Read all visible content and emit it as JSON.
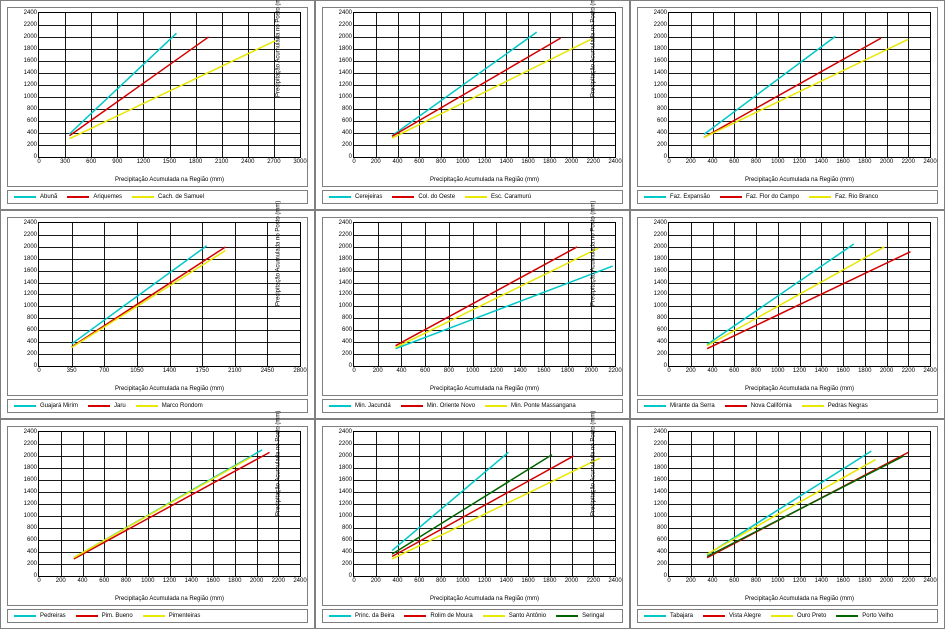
{
  "global": {
    "ylabel": "Precipitação Acumulada no Posto (mm)",
    "xlabel": "Precipitação Acumulada na Região (mm)",
    "label_fontsize": 6,
    "tick_fontsize": 6,
    "ylim": [
      0,
      2400
    ],
    "ytick_step": 200,
    "panel_border": "#7f7f7f",
    "grid_color": "#000000",
    "bg": "#ffffff",
    "colors": {
      "cyan": "#00c8c8",
      "red": "#d40000",
      "yellow": "#e8e800",
      "green": "#006400"
    },
    "line_width": 1.5
  },
  "panels": [
    {
      "xlim": [
        0,
        3000
      ],
      "xtick_step": 300,
      "series": [
        {
          "name": "Abunã",
          "color": "cyan",
          "pts": [
            [
              350,
              380
            ],
            [
              1580,
              2060
            ]
          ]
        },
        {
          "name": "Ariquemes",
          "color": "red",
          "pts": [
            [
              350,
              350
            ],
            [
              1950,
              2000
            ]
          ]
        },
        {
          "name": "Cach. de Samuel",
          "color": "yellow",
          "pts": [
            [
              350,
              300
            ],
            [
              2720,
              1940
            ]
          ]
        }
      ]
    },
    {
      "xlim": [
        0,
        2400
      ],
      "xtick_step": 200,
      "series": [
        {
          "name": "Cerejeiras",
          "color": "cyan",
          "pts": [
            [
              350,
              350
            ],
            [
              1680,
              2080
            ]
          ]
        },
        {
          "name": "Col. do Oeste",
          "color": "red",
          "pts": [
            [
              350,
              340
            ],
            [
              1900,
              1980
            ]
          ]
        },
        {
          "name": "Esc. Caramurú",
          "color": "yellow",
          "pts": [
            [
              350,
              310
            ],
            [
              2180,
              1960
            ]
          ]
        }
      ]
    },
    {
      "xlim": [
        0,
        2400
      ],
      "xtick_step": 200,
      "series": [
        {
          "name": "Faz. Expansão",
          "color": "cyan",
          "pts": [
            [
              320,
              370
            ],
            [
              1530,
              2010
            ]
          ]
        },
        {
          "name": "Faz. Flor do Campo",
          "color": "red",
          "pts": [
            [
              320,
              320
            ],
            [
              1950,
              1980
            ]
          ]
        },
        {
          "name": "Faz. Rio Branco",
          "color": "yellow",
          "pts": [
            [
              320,
              320
            ],
            [
              2200,
              1960
            ]
          ]
        }
      ]
    },
    {
      "xlim": [
        0,
        2800
      ],
      "xtick_step": 350,
      "series": [
        {
          "name": "Guajará Mirím",
          "color": "cyan",
          "pts": [
            [
              350,
              380
            ],
            [
              1800,
              2020
            ]
          ]
        },
        {
          "name": "Jaru",
          "color": "red",
          "pts": [
            [
              350,
              330
            ],
            [
              2000,
              2000
            ]
          ]
        },
        {
          "name": "Marco Rondom",
          "color": "yellow",
          "pts": [
            [
              350,
              320
            ],
            [
              2000,
              1940
            ]
          ]
        }
      ]
    },
    {
      "xlim": [
        0,
        2200
      ],
      "xtick_step": 200,
      "series": [
        {
          "name": "Min. Jacundá",
          "color": "cyan",
          "pts": [
            [
              350,
              300
            ],
            [
              2180,
              1680
            ]
          ]
        },
        {
          "name": "Min. Oriente Novo",
          "color": "red",
          "pts": [
            [
              350,
              350
            ],
            [
              1880,
              2000
            ]
          ]
        },
        {
          "name": "Min. Ponte Massangana",
          "color": "yellow",
          "pts": [
            [
              350,
              320
            ],
            [
              2060,
              1980
            ]
          ]
        }
      ]
    },
    {
      "xlim": [
        0,
        2400
      ],
      "xtick_step": 200,
      "series": [
        {
          "name": "Mirante da Serra",
          "color": "cyan",
          "pts": [
            [
              350,
              370
            ],
            [
              1700,
              2050
            ]
          ]
        },
        {
          "name": "Nova Califórnia",
          "color": "red",
          "pts": [
            [
              350,
              300
            ],
            [
              2220,
              1920
            ]
          ]
        },
        {
          "name": "Pedras Negras",
          "color": "yellow",
          "pts": [
            [
              350,
              350
            ],
            [
              1980,
              2000
            ]
          ]
        }
      ]
    },
    {
      "xlim": [
        0,
        2400
      ],
      "xtick_step": 200,
      "series": [
        {
          "name": "Pedreiras",
          "color": "cyan",
          "pts": [
            [
              320,
              300
            ],
            [
              2050,
              2100
            ]
          ]
        },
        {
          "name": "Pim. Bueno",
          "color": "red",
          "pts": [
            [
              320,
              280
            ],
            [
              2120,
              2060
            ]
          ]
        },
        {
          "name": "Pimenteiras",
          "color": "yellow",
          "pts": [
            [
              320,
              300
            ],
            [
              1950,
              1980
            ]
          ]
        }
      ]
    },
    {
      "xlim": [
        0,
        2400
      ],
      "xtick_step": 200,
      "series": [
        {
          "name": "Princ. da Beira",
          "color": "cyan",
          "pts": [
            [
              350,
              420
            ],
            [
              1420,
              2060
            ]
          ]
        },
        {
          "name": "Rolim de Moura",
          "color": "red",
          "pts": [
            [
              350,
              320
            ],
            [
              2020,
              2000
            ]
          ]
        },
        {
          "name": "Santo Antônio",
          "color": "yellow",
          "pts": [
            [
              350,
              280
            ],
            [
              2260,
              1960
            ]
          ]
        },
        {
          "name": "Seringal",
          "color": "green",
          "pts": [
            [
              350,
              360
            ],
            [
              1820,
              2020
            ]
          ]
        }
      ]
    },
    {
      "xlim": [
        0,
        2400
      ],
      "xtick_step": 200,
      "series": [
        {
          "name": "Tabajara",
          "color": "cyan",
          "pts": [
            [
              350,
              350
            ],
            [
              1860,
              2080
            ]
          ]
        },
        {
          "name": "Vista Alegre",
          "color": "red",
          "pts": [
            [
              350,
              300
            ],
            [
              2200,
              2060
            ]
          ]
        },
        {
          "name": "Ouro Preto",
          "color": "yellow",
          "pts": [
            [
              350,
              360
            ],
            [
              1900,
              1940
            ]
          ]
        },
        {
          "name": "Porto Velho",
          "color": "green",
          "pts": [
            [
              350,
              320
            ],
            [
              2160,
              2000
            ]
          ]
        }
      ]
    }
  ]
}
